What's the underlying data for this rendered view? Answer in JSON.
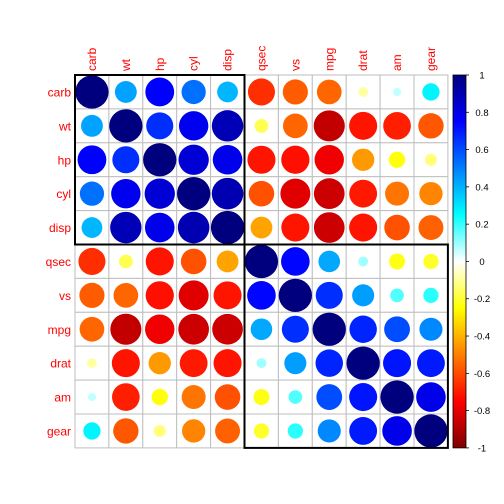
{
  "chart_data": {
    "type": "heatmap",
    "labels": [
      "carb",
      "wt",
      "hp",
      "cyl",
      "disp",
      "qsec",
      "vs",
      "mpg",
      "drat",
      "am",
      "gear"
    ],
    "matrix": [
      [
        1.0,
        0.43,
        0.75,
        0.53,
        0.39,
        -0.66,
        -0.57,
        -0.55,
        -0.09,
        0.06,
        0.27
      ],
      [
        0.43,
        1.0,
        0.66,
        0.78,
        0.89,
        -0.17,
        -0.55,
        -0.87,
        -0.71,
        -0.69,
        -0.58
      ],
      [
        0.75,
        0.66,
        1.0,
        0.83,
        0.79,
        -0.71,
        -0.72,
        -0.78,
        -0.45,
        -0.24,
        -0.13
      ],
      [
        0.53,
        0.78,
        0.83,
        1.0,
        0.9,
        -0.59,
        -0.81,
        -0.85,
        -0.7,
        -0.52,
        -0.49
      ],
      [
        0.39,
        0.89,
        0.79,
        0.9,
        1.0,
        -0.43,
        -0.71,
        -0.85,
        -0.71,
        -0.59,
        -0.56
      ],
      [
        -0.66,
        -0.17,
        -0.71,
        -0.59,
        -0.43,
        1.0,
        0.74,
        0.42,
        0.09,
        -0.23,
        -0.21
      ],
      [
        -0.57,
        -0.55,
        -0.72,
        -0.81,
        -0.71,
        0.74,
        1.0,
        0.66,
        0.44,
        0.17,
        0.21
      ],
      [
        -0.55,
        -0.87,
        -0.78,
        -0.85,
        -0.85,
        0.42,
        0.66,
        1.0,
        0.68,
        0.6,
        0.48
      ],
      [
        -0.09,
        -0.71,
        -0.45,
        -0.7,
        -0.71,
        0.09,
        0.44,
        0.68,
        1.0,
        0.71,
        0.7
      ],
      [
        0.06,
        -0.69,
        -0.24,
        -0.52,
        -0.59,
        -0.23,
        0.17,
        0.6,
        0.71,
        1.0,
        0.79
      ],
      [
        0.27,
        -0.58,
        -0.13,
        -0.49,
        -0.56,
        -0.21,
        0.21,
        0.48,
        0.7,
        0.79,
        1.0
      ]
    ],
    "clusters": [
      [
        0,
        4
      ],
      [
        5,
        10
      ]
    ],
    "colorbar": {
      "ticks": [
        "1",
        "0.8",
        "0.6",
        "0.4",
        "0.2",
        "0",
        "-0.2",
        "-0.4",
        "-0.6",
        "-0.8",
        "-1"
      ],
      "range": [
        -1,
        1
      ],
      "colors": [
        "#67001F",
        "#B2182B",
        "#D6604D",
        "#F4A582",
        "#FDDBC7",
        "#FFFFFF",
        "#D1E5F0",
        "#92C5DE",
        "#4393C3",
        "#2166AC",
        "#053061"
      ],
      "palette": [
        "#7F0000",
        "#FF0000",
        "#FF7F00",
        "#FFFF00",
        "#FFFFFF",
        "#00FFFF",
        "#007FFF",
        "#0000FF",
        "#00007F"
      ]
    },
    "label_color": "#FF0000",
    "grid": true
  }
}
